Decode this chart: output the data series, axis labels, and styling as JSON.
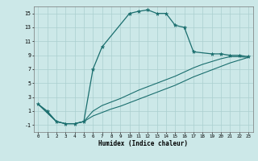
{
  "xlabel": "Humidex (Indice chaleur)",
  "bg_color": "#cce8e8",
  "grid_color": "#aacfcf",
  "line_color": "#1a6e6e",
  "ylim": [
    -2,
    16
  ],
  "xlim": [
    -0.5,
    23.5
  ],
  "yticks": [
    -1,
    1,
    3,
    5,
    7,
    9,
    11,
    13,
    15
  ],
  "xticks": [
    0,
    1,
    2,
    3,
    4,
    5,
    6,
    7,
    8,
    9,
    10,
    11,
    12,
    13,
    14,
    15,
    16,
    17,
    18,
    19,
    20,
    21,
    22,
    23
  ],
  "line1_x": [
    0,
    1,
    2,
    3,
    4,
    5,
    6,
    7,
    10,
    11,
    12,
    13,
    14,
    15,
    16,
    17,
    19,
    20,
    21,
    22,
    23
  ],
  "line1_y": [
    2,
    1,
    -0.5,
    -0.8,
    -0.8,
    -0.5,
    7.0,
    10.2,
    15.0,
    15.3,
    15.5,
    15.0,
    15.0,
    13.3,
    13.0,
    9.5,
    9.2,
    9.2,
    9.0,
    9.0,
    8.8
  ],
  "line2_x": [
    0,
    2,
    3,
    4,
    5,
    6,
    7,
    8,
    9,
    10,
    11,
    12,
    13,
    14,
    15,
    16,
    17,
    18,
    19,
    20,
    21,
    22,
    23
  ],
  "line2_y": [
    2,
    -0.5,
    -0.8,
    -0.8,
    -0.5,
    1.0,
    1.8,
    2.3,
    2.8,
    3.4,
    4.0,
    4.5,
    5.0,
    5.5,
    6.0,
    6.6,
    7.2,
    7.7,
    8.1,
    8.5,
    8.8,
    8.8,
    8.7
  ],
  "line3_x": [
    0,
    2,
    3,
    4,
    5,
    6,
    7,
    8,
    9,
    10,
    11,
    12,
    13,
    14,
    15,
    16,
    17,
    18,
    19,
    20,
    21,
    22,
    23
  ],
  "line3_y": [
    2,
    -0.5,
    -0.8,
    -0.8,
    -0.5,
    0.3,
    0.8,
    1.3,
    1.7,
    2.2,
    2.7,
    3.2,
    3.7,
    4.2,
    4.7,
    5.3,
    5.9,
    6.4,
    6.9,
    7.4,
    7.9,
    8.3,
    8.7
  ]
}
